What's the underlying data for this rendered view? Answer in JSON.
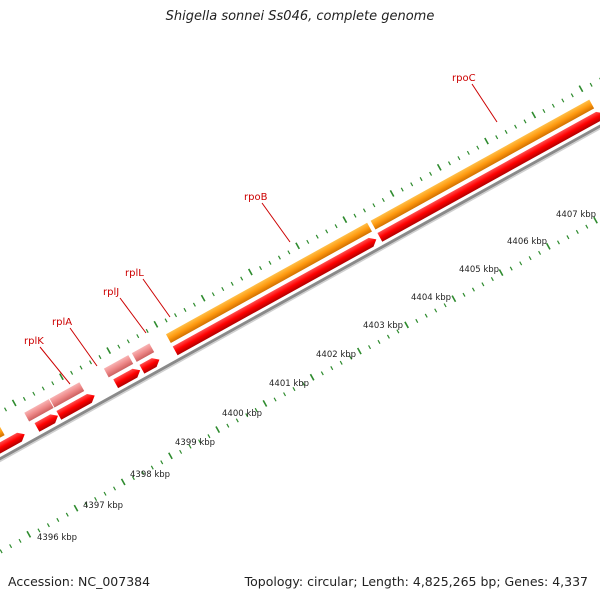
{
  "title": "Shigella sonnei Ss046, complete genome",
  "accession": "Accession: NC_007384",
  "summary": "Topology: circular; Length: 4,825,265 bp; Genes: 4,337",
  "colors": {
    "cds": "#ff0000",
    "gene": "#ff8c00",
    "rna_gene": "#f08080",
    "green_feature": "#7fd42a",
    "backbone": "#888888",
    "tick": "#2e8b2e",
    "label": "#cc0000"
  },
  "genes": [
    {
      "name": "rplK",
      "kind": "rna_gene"
    },
    {
      "name": "rplA",
      "kind": "rna_gene"
    },
    {
      "name": "rplJ",
      "kind": "rna_gene"
    },
    {
      "name": "rplL",
      "kind": "rna_gene"
    },
    {
      "name": "rpoB",
      "kind": "gene"
    },
    {
      "name": "rpoC",
      "kind": "gene"
    }
  ],
  "scale_labels": [
    "4396 kbp",
    "4397 kbp",
    "4398 kbp",
    "4399 kbp",
    "4400 kbp",
    "4401 kbp",
    "4402 kbp",
    "4403 kbp",
    "4404 kbp",
    "4405 kbp",
    "4406 kbp",
    "4407 kbp"
  ]
}
